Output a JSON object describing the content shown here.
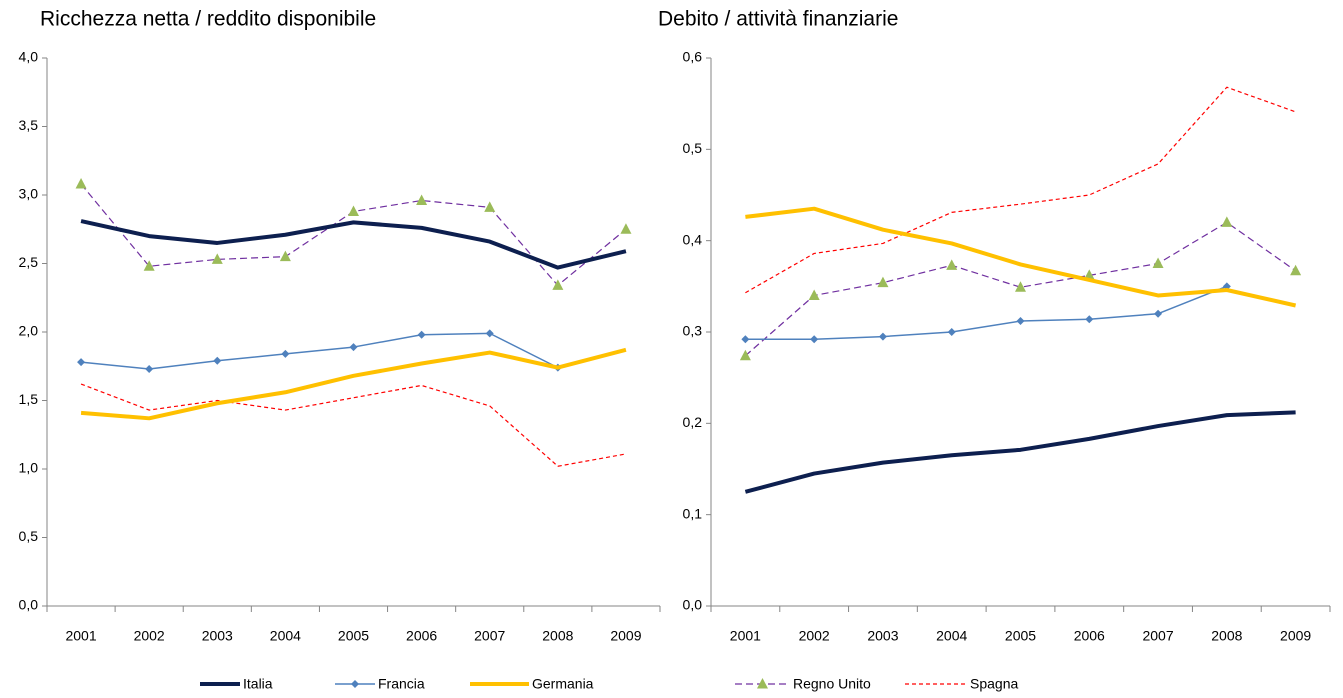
{
  "chart_data": [
    {
      "type": "line",
      "title": "Ricchezza netta / reddito disponibile",
      "categories": [
        "2001",
        "2002",
        "2003",
        "2004",
        "2005",
        "2006",
        "2007",
        "2008",
        "2009"
      ],
      "ylim": [
        0,
        4
      ],
      "yticks": [
        {
          "value": 0,
          "label": "0,0"
        },
        {
          "value": 0.5,
          "label": "0,5"
        },
        {
          "value": 1,
          "label": "1,0"
        },
        {
          "value": 1.5,
          "label": "1,5"
        },
        {
          "value": 2,
          "label": "2,0"
        },
        {
          "value": 2.5,
          "label": "2,5"
        },
        {
          "value": 3,
          "label": "3,0"
        },
        {
          "value": 3.5,
          "label": "3,5"
        },
        {
          "value": 4,
          "label": "4,0"
        }
      ],
      "grid": false,
      "series": [
        {
          "name": "Italia",
          "color": "#0d1f4f",
          "values": [
            2.81,
            2.7,
            2.65,
            2.71,
            2.8,
            2.76,
            2.66,
            2.47,
            2.59
          ]
        },
        {
          "name": "Francia",
          "color": "#4f81bd",
          "values": [
            1.78,
            1.73,
            1.79,
            1.84,
            1.89,
            1.98,
            1.99,
            1.74,
            null
          ]
        },
        {
          "name": "Germania",
          "color": "#ffc000",
          "values": [
            1.41,
            1.37,
            1.48,
            1.56,
            1.68,
            1.77,
            1.85,
            1.74,
            1.87
          ]
        },
        {
          "color": "#7030a0",
          "values": [
            3.08,
            2.48,
            2.53,
            2.55,
            2.88,
            2.96,
            2.91,
            2.34,
            2.75
          ]
        },
        {
          "color": "#ff0000",
          "values": [
            1.62,
            1.43,
            1.5,
            1.43,
            1.52,
            1.61,
            1.46,
            1.02,
            1.11
          ]
        }
      ]
    },
    {
      "type": "line",
      "title": "Debito / attività finanziarie",
      "categories": [
        "2001",
        "2002",
        "2003",
        "2004",
        "2005",
        "2006",
        "2007",
        "2008",
        "2009"
      ],
      "ylim": [
        0,
        0.6
      ],
      "yticks": [
        {
          "value": 0,
          "label": "0,0"
        },
        {
          "value": 0.1,
          "label": "0,1"
        },
        {
          "value": 0.2,
          "label": "0,2"
        },
        {
          "value": 0.3,
          "label": "0,3"
        },
        {
          "value": 0.4,
          "label": "0,4"
        },
        {
          "value": 0.5,
          "label": "0,5"
        },
        {
          "value": 0.6,
          "label": "0,6"
        }
      ],
      "grid": false,
      "series": [
        {
          "color": "#0d1f4f",
          "values": [
            0.125,
            0.145,
            0.157,
            0.165,
            0.171,
            0.183,
            0.197,
            0.209,
            0.212
          ]
        },
        {
          "color": "#4f81bd",
          "values": [
            0.292,
            0.292,
            0.295,
            0.3,
            0.312,
            0.314,
            0.32,
            0.35,
            null
          ]
        },
        {
          "color": "#ffc000",
          "values": [
            0.426,
            0.435,
            0.412,
            0.397,
            0.374,
            0.357,
            0.34,
            0.346,
            0.329
          ]
        },
        {
          "name": "Regno Unito",
          "color": "#7030a0",
          "values": [
            0.274,
            0.34,
            0.354,
            0.373,
            0.349,
            0.362,
            0.375,
            0.42,
            0.367
          ]
        },
        {
          "name": "Spagna",
          "color": "#ff0000",
          "values": [
            0.343,
            0.386,
            0.397,
            0.431,
            0.44,
            0.45,
            0.484,
            0.568,
            0.541
          ]
        }
      ]
    }
  ]
}
